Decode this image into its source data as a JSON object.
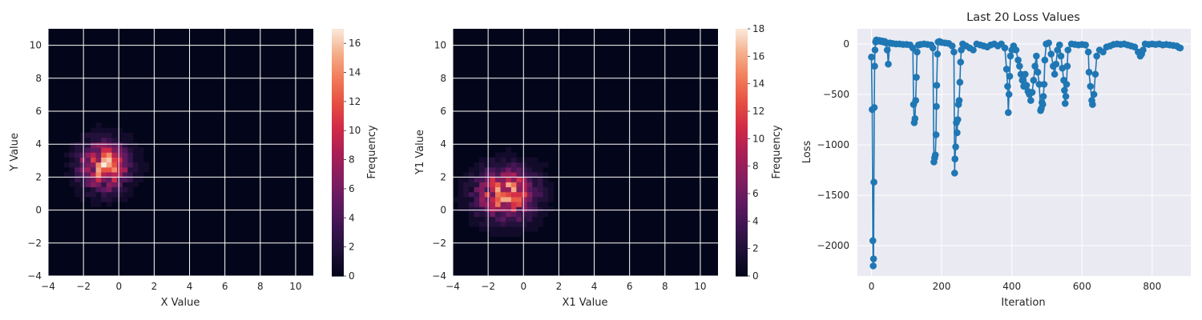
{
  "chart_data": [
    {
      "type": "heatmap",
      "title": "",
      "xlabel": "X Value",
      "ylabel": "Y Value",
      "xlim": [
        -4,
        11
      ],
      "ylim": [
        -4,
        11
      ],
      "xticks": [
        "−4",
        "−2",
        "0",
        "2",
        "4",
        "6",
        "8",
        "10"
      ],
      "yticks": [
        "−4",
        "−2",
        "0",
        "2",
        "4",
        "6",
        "8",
        "10"
      ],
      "grid": true,
      "colorbar": {
        "label": "Frequency",
        "min": 0,
        "max": 17,
        "ticks": [
          "0",
          "2",
          "4",
          "6",
          "8",
          "10",
          "12",
          "14",
          "16"
        ]
      },
      "distribution": {
        "center_x": -0.8,
        "center_y": 2.7,
        "spread_x": 0.9,
        "spread_y": 0.95,
        "peak": 17
      },
      "bins": {
        "x_range": [
          -4,
          11
        ],
        "y_range": [
          -4,
          11
        ],
        "count": 50
      }
    },
    {
      "type": "heatmap",
      "title": "",
      "xlabel": "X1 Value",
      "ylabel": "Y1 Value",
      "xlim": [
        -4,
        11
      ],
      "ylim": [
        -4,
        11
      ],
      "xticks": [
        "−4",
        "−2",
        "0",
        "2",
        "4",
        "6",
        "8",
        "10"
      ],
      "yticks": [
        "−4",
        "−2",
        "0",
        "2",
        "4",
        "6",
        "8",
        "10"
      ],
      "grid": true,
      "colorbar": {
        "label": "Frequency",
        "min": 0,
        "max": 18,
        "ticks": [
          "0",
          "2",
          "4",
          "6",
          "8",
          "10",
          "12",
          "14",
          "16",
          "18"
        ]
      },
      "distribution": {
        "center_x": -1.0,
        "center_y": 1.0,
        "spread_x": 1.1,
        "spread_y": 1.0,
        "peak": 18
      },
      "bins": {
        "x_range": [
          -4,
          11
        ],
        "y_range": [
          -4,
          11
        ],
        "count": 50
      }
    },
    {
      "type": "line",
      "title": "Last 20 Loss Values",
      "xlabel": "Iteration",
      "ylabel": "Loss",
      "xlim": [
        -40,
        910
      ],
      "ylim": [
        -2300,
        150
      ],
      "xticks": [
        "0",
        "200",
        "400",
        "600",
        "800"
      ],
      "yticks": [
        "0",
        "−500",
        "−1000",
        "−1500",
        "−2000"
      ],
      "grid": true,
      "series": [
        {
          "color": "#1f77b4",
          "points": [
            [
              0,
              -130
            ],
            [
              2,
              -650
            ],
            [
              4,
              -1950
            ],
            [
              5,
              -2200
            ],
            [
              6,
              -2130
            ],
            [
              7,
              -1370
            ],
            [
              8,
              -630
            ],
            [
              9,
              -220
            ],
            [
              10,
              -60
            ],
            [
              12,
              20
            ],
            [
              14,
              40
            ],
            [
              18,
              30
            ],
            [
              22,
              35
            ],
            [
              26,
              25
            ],
            [
              30,
              30
            ],
            [
              34,
              20
            ],
            [
              38,
              25
            ],
            [
              42,
              10
            ],
            [
              45,
              -60
            ],
            [
              48,
              -200
            ],
            [
              52,
              10
            ],
            [
              60,
              5
            ],
            [
              70,
              0
            ],
            [
              80,
              0
            ],
            [
              90,
              -5
            ],
            [
              100,
              -5
            ],
            [
              110,
              -10
            ],
            [
              118,
              -40
            ],
            [
              120,
              -600
            ],
            [
              122,
              -780
            ],
            [
              124,
              -740
            ],
            [
              126,
              -560
            ],
            [
              128,
              -330
            ],
            [
              130,
              -80
            ],
            [
              134,
              -10
            ],
            [
              140,
              -5
            ],
            [
              150,
              0
            ],
            [
              160,
              -5
            ],
            [
              170,
              -10
            ],
            [
              175,
              -40
            ],
            [
              178,
              -1170
            ],
            [
              180,
              -1130
            ],
            [
              182,
              -1100
            ],
            [
              184,
              -900
            ],
            [
              185,
              -620
            ],
            [
              186,
              -410
            ],
            [
              188,
              -100
            ],
            [
              190,
              20
            ],
            [
              194,
              25
            ],
            [
              200,
              15
            ],
            [
              210,
              10
            ],
            [
              220,
              5
            ],
            [
              230,
              -20
            ],
            [
              235,
              -80
            ],
            [
              237,
              -1280
            ],
            [
              238,
              -1140
            ],
            [
              240,
              -1020
            ],
            [
              242,
              -780
            ],
            [
              244,
              -880
            ],
            [
              246,
              -750
            ],
            [
              248,
              -600
            ],
            [
              250,
              -560
            ],
            [
              252,
              -380
            ],
            [
              254,
              -180
            ],
            [
              256,
              -60
            ],
            [
              260,
              0
            ],
            [
              270,
              -20
            ],
            [
              280,
              -40
            ],
            [
              290,
              -60
            ],
            [
              300,
              0
            ],
            [
              310,
              -10
            ],
            [
              320,
              -20
            ],
            [
              330,
              -30
            ],
            [
              340,
              -10
            ],
            [
              350,
              0
            ],
            [
              360,
              -20
            ],
            [
              370,
              0
            ],
            [
              380,
              -40
            ],
            [
              385,
              -250
            ],
            [
              388,
              -420
            ],
            [
              390,
              -680
            ],
            [
              392,
              -500
            ],
            [
              394,
              -320
            ],
            [
              396,
              -120
            ],
            [
              400,
              -60
            ],
            [
              405,
              -20
            ],
            [
              412,
              -60
            ],
            [
              418,
              -160
            ],
            [
              422,
              -220
            ],
            [
              426,
              -300
            ],
            [
              430,
              -360
            ],
            [
              434,
              -420
            ],
            [
              438,
              -300
            ],
            [
              442,
              -410
            ],
            [
              446,
              -470
            ],
            [
              450,
              -500
            ],
            [
              454,
              -560
            ],
            [
              458,
              -480
            ],
            [
              462,
              -360
            ],
            [
              466,
              -220
            ],
            [
              470,
              -120
            ],
            [
              474,
              -280
            ],
            [
              478,
              -400
            ],
            [
              482,
              -660
            ],
            [
              484,
              -640
            ],
            [
              486,
              -580
            ],
            [
              488,
              -600
            ],
            [
              490,
              -520
            ],
            [
              492,
              -400
            ],
            [
              494,
              -160
            ],
            [
              498,
              0
            ],
            [
              505,
              10
            ],
            [
              512,
              -100
            ],
            [
              518,
              -220
            ],
            [
              522,
              -300
            ],
            [
              526,
              -200
            ],
            [
              530,
              -60
            ],
            [
              536,
              -10
            ],
            [
              540,
              -120
            ],
            [
              544,
              -240
            ],
            [
              548,
              -360
            ],
            [
              550,
              -460
            ],
            [
              552,
              -590
            ],
            [
              554,
              -520
            ],
            [
              556,
              -400
            ],
            [
              558,
              -220
            ],
            [
              560,
              -60
            ],
            [
              570,
              0
            ],
            [
              580,
              -5
            ],
            [
              590,
              -10
            ],
            [
              600,
              -5
            ],
            [
              610,
              -10
            ],
            [
              618,
              -80
            ],
            [
              620,
              -280
            ],
            [
              624,
              -420
            ],
            [
              628,
              -560
            ],
            [
              630,
              -600
            ],
            [
              634,
              -500
            ],
            [
              638,
              -300
            ],
            [
              642,
              -120
            ],
            [
              650,
              -60
            ],
            [
              660,
              -80
            ],
            [
              670,
              -30
            ],
            [
              680,
              -20
            ],
            [
              690,
              -5
            ],
            [
              700,
              0
            ],
            [
              710,
              -5
            ],
            [
              720,
              0
            ],
            [
              730,
              -10
            ],
            [
              740,
              -20
            ],
            [
              750,
              -30
            ],
            [
              760,
              -80
            ],
            [
              766,
              -120
            ],
            [
              770,
              -100
            ],
            [
              774,
              -60
            ],
            [
              780,
              0
            ],
            [
              790,
              -5
            ],
            [
              800,
              0
            ],
            [
              810,
              -5
            ],
            [
              820,
              0
            ],
            [
              830,
              -10
            ],
            [
              840,
              -5
            ],
            [
              850,
              -10
            ],
            [
              860,
              -15
            ],
            [
              870,
              -20
            ],
            [
              876,
              -35
            ],
            [
              880,
              -40
            ]
          ]
        }
      ]
    }
  ]
}
